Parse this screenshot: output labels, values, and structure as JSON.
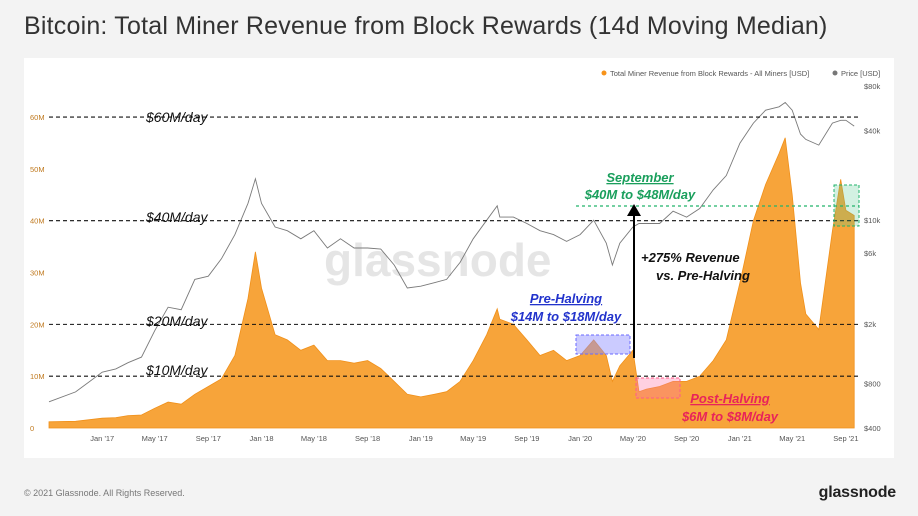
{
  "title": "Bitcoin: Total Miner Revenue from Block Rewards (14d Moving Median)",
  "legend": [
    {
      "label": "Total Miner Revenue from Block Rewards - All Miners [USD]",
      "color": "#f7931a"
    },
    {
      "label": "Price [USD]",
      "color": "#777777"
    }
  ],
  "watermark": "glassnode",
  "footer": {
    "copyright": "© 2021 Glassnode. All Rights Reserved.",
    "brand": "glassnode"
  },
  "annotations": {
    "lines": [
      "$60M/day",
      "$40M/day",
      "$20M/day",
      "$10M/day"
    ],
    "september_title": "September",
    "september_range": "$40M to $48M/day",
    "revenue_line1": "+275% Revenue",
    "revenue_line2": "vs. Pre-Halving",
    "pre_title": "Pre-Halving",
    "pre_range": "$14M to $18M/day",
    "post_title": "Post-Halving",
    "post_range": "$6M to $8M/day"
  },
  "chart_data": {
    "type": "area",
    "x_ticks": [
      "Jan '17",
      "May '17",
      "Sep '17",
      "Jan '18",
      "May '18",
      "Sep '18",
      "Jan '19",
      "May '19",
      "Sep '19",
      "Jan '20",
      "May '20",
      "Sep '20",
      "Jan '21",
      "May '21",
      "Sep '21"
    ],
    "y_left_ticks": [
      "0",
      "10M",
      "20M",
      "30M",
      "40M",
      "50M",
      "60M"
    ],
    "y_right_ticks": [
      "$400",
      "$800",
      "$2k",
      "$6k",
      "$10k",
      "$40k",
      "$80k"
    ],
    "ylim_left": [
      0,
      66
    ],
    "ylim_right": [
      400,
      80000
    ],
    "right_axis_scale": "log",
    "reference_lines": [
      60,
      40,
      20,
      10
    ],
    "series": [
      {
        "name": "Total Miner Revenue from Block Rewards - All Miners [USD]",
        "axis": "left",
        "points": [
          [
            "2016-09",
            1.2
          ],
          [
            "2016-11",
            1.3
          ],
          [
            "2017-01",
            1.9
          ],
          [
            "2017-02",
            2.0
          ],
          [
            "2017-03",
            2.4
          ],
          [
            "2017-04",
            2.5
          ],
          [
            "2017-05",
            3.8
          ],
          [
            "2017-06",
            5.0
          ],
          [
            "2017-07",
            4.6
          ],
          [
            "2017-08",
            6.5
          ],
          [
            "2017-09",
            8.0
          ],
          [
            "2017-10",
            9.5
          ],
          [
            "2017-11",
            14
          ],
          [
            "2017-12",
            25
          ],
          [
            "2017-12-18",
            34
          ],
          [
            "2018-01",
            27
          ],
          [
            "2018-02",
            18
          ],
          [
            "2018-03",
            17
          ],
          [
            "2018-04",
            15
          ],
          [
            "2018-05",
            16
          ],
          [
            "2018-06",
            13
          ],
          [
            "2018-07",
            13
          ],
          [
            "2018-08",
            12.5
          ],
          [
            "2018-09",
            13
          ],
          [
            "2018-10",
            11.5
          ],
          [
            "2018-11",
            9
          ],
          [
            "2018-12",
            6.5
          ],
          [
            "2019-01",
            6
          ],
          [
            "2019-02",
            6.5
          ],
          [
            "2019-03",
            7
          ],
          [
            "2019-04",
            9
          ],
          [
            "2019-05",
            13
          ],
          [
            "2019-06",
            18
          ],
          [
            "2019-06-25",
            23
          ],
          [
            "2019-07",
            21
          ],
          [
            "2019-08",
            20
          ],
          [
            "2019-09",
            17
          ],
          [
            "2019-10",
            14
          ],
          [
            "2019-11",
            15
          ],
          [
            "2019-12",
            13
          ],
          [
            "2020-01",
            14
          ],
          [
            "2020-02",
            17
          ],
          [
            "2020-03",
            14
          ],
          [
            "2020-03-15",
            9
          ],
          [
            "2020-04",
            12
          ],
          [
            "2020-05",
            15
          ],
          [
            "2020-05-15",
            7
          ],
          [
            "2020-06",
            7.5
          ],
          [
            "2020-07",
            8
          ],
          [
            "2020-08",
            9
          ],
          [
            "2020-09",
            9
          ],
          [
            "2020-10",
            10
          ],
          [
            "2020-11",
            13
          ],
          [
            "2020-12",
            17
          ],
          [
            "2021-01",
            28
          ],
          [
            "2021-02",
            40
          ],
          [
            "2021-03",
            47
          ],
          [
            "2021-04",
            53
          ],
          [
            "2021-04-15",
            56
          ],
          [
            "2021-05",
            45
          ],
          [
            "2021-05-20",
            28
          ],
          [
            "2021-06",
            22
          ],
          [
            "2021-07",
            19
          ],
          [
            "2021-08",
            38
          ],
          [
            "2021-08-20",
            48
          ],
          [
            "2021-09",
            42
          ],
          [
            "2021-09-20",
            41
          ]
        ]
      },
      {
        "name": "Price [USD]",
        "axis": "right",
        "points": [
          [
            "2016-09",
            600
          ],
          [
            "2016-11",
            700
          ],
          [
            "2017-01",
            950
          ],
          [
            "2017-02",
            1000
          ],
          [
            "2017-03",
            1100
          ],
          [
            "2017-04",
            1200
          ],
          [
            "2017-05",
            1800
          ],
          [
            "2017-06",
            2600
          ],
          [
            "2017-07",
            2500
          ],
          [
            "2017-08",
            4000
          ],
          [
            "2017-09",
            4200
          ],
          [
            "2017-10",
            5500
          ],
          [
            "2017-11",
            8000
          ],
          [
            "2017-12",
            13000
          ],
          [
            "2017-12-18",
            19000
          ],
          [
            "2018-01",
            13000
          ],
          [
            "2018-02",
            9000
          ],
          [
            "2018-03",
            8500
          ],
          [
            "2018-04",
            7500
          ],
          [
            "2018-05",
            8500
          ],
          [
            "2018-06",
            6500
          ],
          [
            "2018-07",
            7500
          ],
          [
            "2018-08",
            6500
          ],
          [
            "2018-09",
            6500
          ],
          [
            "2018-10",
            6400
          ],
          [
            "2018-11",
            5000
          ],
          [
            "2018-12",
            3500
          ],
          [
            "2019-01",
            3600
          ],
          [
            "2019-02",
            3800
          ],
          [
            "2019-03",
            4000
          ],
          [
            "2019-04",
            5200
          ],
          [
            "2019-05",
            7500
          ],
          [
            "2019-06",
            10000
          ],
          [
            "2019-06-25",
            12500
          ],
          [
            "2019-07",
            10500
          ],
          [
            "2019-08",
            10500
          ],
          [
            "2019-09",
            9500
          ],
          [
            "2019-10",
            8500
          ],
          [
            "2019-11",
            8000
          ],
          [
            "2019-12",
            7200
          ],
          [
            "2020-01",
            8000
          ],
          [
            "2020-02",
            10000
          ],
          [
            "2020-03",
            7000
          ],
          [
            "2020-03-15",
            5000
          ],
          [
            "2020-04",
            7000
          ],
          [
            "2020-05",
            9000
          ],
          [
            "2020-05-15",
            9500
          ],
          [
            "2020-06",
            9500
          ],
          [
            "2020-07",
            9500
          ],
          [
            "2020-08",
            11500
          ],
          [
            "2020-09",
            10500
          ],
          [
            "2020-10",
            12000
          ],
          [
            "2020-11",
            16000
          ],
          [
            "2020-12",
            20000
          ],
          [
            "2021-01",
            33000
          ],
          [
            "2021-02",
            45000
          ],
          [
            "2021-03",
            55000
          ],
          [
            "2021-04",
            58000
          ],
          [
            "2021-04-15",
            62000
          ],
          [
            "2021-05",
            55000
          ],
          [
            "2021-05-20",
            38000
          ],
          [
            "2021-06",
            35000
          ],
          [
            "2021-07",
            32000
          ],
          [
            "2021-08",
            45000
          ],
          [
            "2021-08-20",
            47000
          ],
          [
            "2021-09",
            47000
          ],
          [
            "2021-09-20",
            43000
          ]
        ]
      }
    ]
  }
}
